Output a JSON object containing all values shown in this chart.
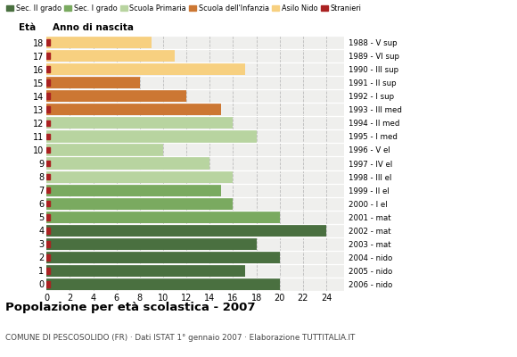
{
  "ages": [
    18,
    17,
    16,
    15,
    14,
    13,
    12,
    11,
    10,
    9,
    8,
    7,
    6,
    5,
    4,
    3,
    2,
    1,
    0
  ],
  "anno_labels": [
    "1988 - V sup",
    "1989 - VI sup",
    "1990 - III sup",
    "1991 - II sup",
    "1992 - I sup",
    "1993 - III med",
    "1994 - II med",
    "1995 - I med",
    "1996 - V el",
    "1997 - IV el",
    "1998 - III el",
    "1999 - II el",
    "2000 - I el",
    "2001 - mat",
    "2002 - mat",
    "2003 - mat",
    "2004 - nido",
    "2005 - nido",
    "2006 - nido"
  ],
  "values": [
    20,
    17,
    20,
    18,
    24,
    20,
    16,
    15,
    16,
    14,
    10,
    18,
    16,
    15,
    12,
    8,
    17,
    11,
    9
  ],
  "colors": [
    "#4a7040",
    "#4a7040",
    "#4a7040",
    "#4a7040",
    "#4a7040",
    "#7aaa60",
    "#7aaa60",
    "#7aaa60",
    "#b8d4a0",
    "#b8d4a0",
    "#b8d4a0",
    "#b8d4a0",
    "#b8d4a0",
    "#cc7733",
    "#cc7733",
    "#cc7733",
    "#f7d080",
    "#f7d080",
    "#f7d080"
  ],
  "legend_labels": [
    "Sec. II grado",
    "Sec. I grado",
    "Scuola Primaria",
    "Scuola dell'Infanzia",
    "Asilo Nido",
    "Stranieri"
  ],
  "legend_colors": [
    "#4a7040",
    "#7aaa60",
    "#b8d4a0",
    "#cc7733",
    "#f7d080",
    "#aa2222"
  ],
  "title": "Popolazione per età scolastica - 2007",
  "subtitle": "COMUNE DI PESCOSOLIDO (FR) · Dati ISTAT 1° gennaio 2007 · Elaborazione TUTTITALIA.IT",
  "xlabel_eta": "Età",
  "xlabel_anno": "Anno di nascita",
  "bg_color": "#efefed",
  "stranieri_color": "#aa2222",
  "grid_color": "#bbbbbb",
  "xticks": [
    0,
    2,
    4,
    6,
    8,
    10,
    12,
    14,
    16,
    18,
    20,
    22,
    24
  ],
  "xlim": [
    0,
    25.5
  ]
}
